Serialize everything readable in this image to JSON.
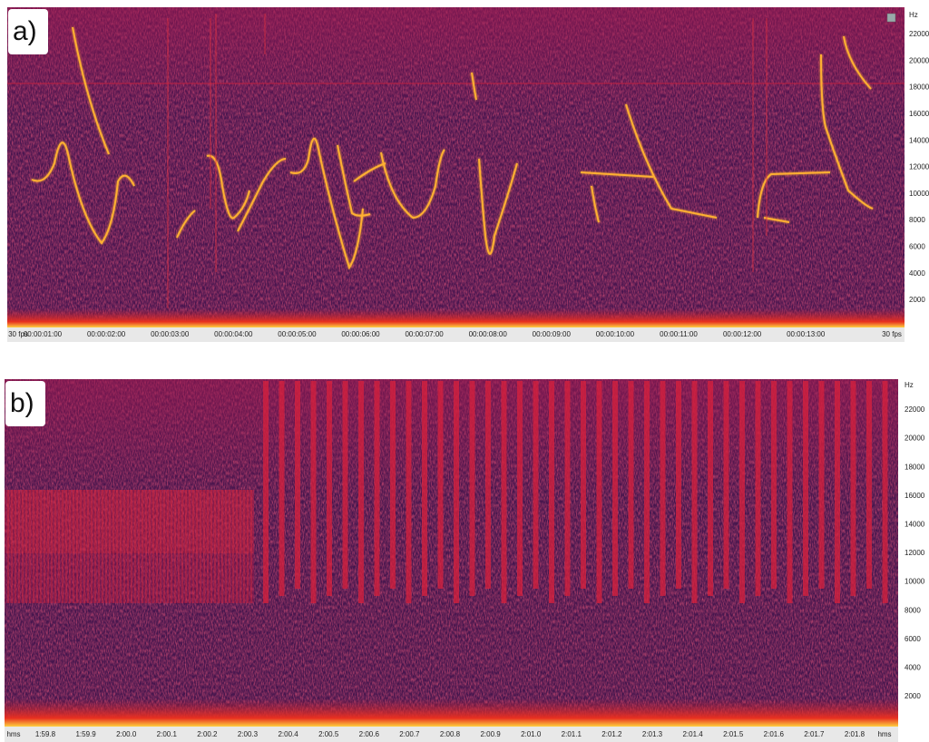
{
  "panels": [
    {
      "label": "a)",
      "y_unit": "Hz",
      "y_labels": [
        "22000",
        "20000",
        "18000",
        "16000",
        "14000",
        "12000",
        "10000",
        "8000",
        "6000",
        "4000",
        "2000"
      ],
      "x_labels": [
        "30 fps",
        "00:00:01:00",
        "00:00:02:00",
        "00:00:03:00",
        "00:00:04:00",
        "00:00:05:00",
        "00:00:06:00",
        "00:00:07:00",
        "00:00:08:00",
        "00:00:09:00",
        "00:00:10:00",
        "00:00:11:00",
        "00:00:12:00",
        "00:00:13:00",
        "30 fps"
      ]
    },
    {
      "label": "b)",
      "y_unit": "Hz",
      "y_labels": [
        "22000",
        "20000",
        "18000",
        "16000",
        "14000",
        "12000",
        "10000",
        "8000",
        "6000",
        "4000",
        "2000"
      ],
      "x_labels": [
        "hms",
        "1:59.8",
        "1:59.9",
        "2:00.0",
        "2:00.1",
        "2:00.2",
        "2:00.3",
        "2:00.4",
        "2:00.5",
        "2:00.6",
        "2:00.7",
        "2:00.8",
        "2:00.9",
        "2:01.0",
        "2:01.1",
        "2:01.2",
        "2:01.3",
        "2:01.4",
        "2:01.5",
        "2:01.6",
        "2:01.7",
        "2:01.8",
        "hms"
      ]
    }
  ]
}
